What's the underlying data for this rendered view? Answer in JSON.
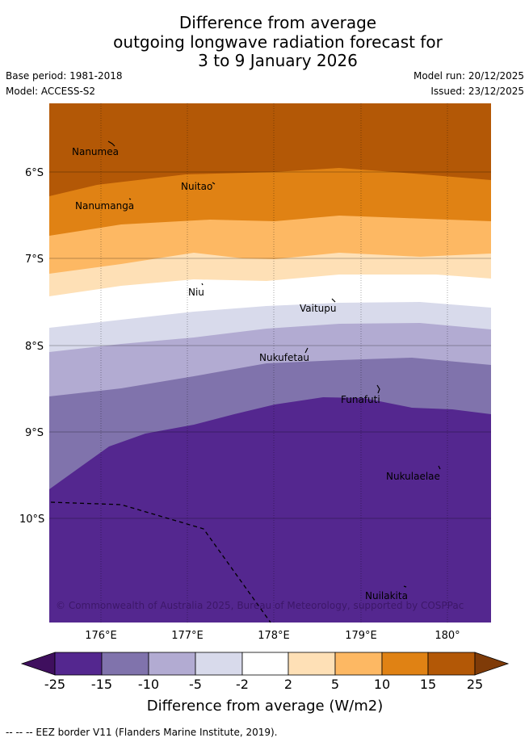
{
  "title": {
    "line1": "Difference from average",
    "line2": "outgoing longwave radiation forecast for",
    "line3": "3 to 9 January 2026"
  },
  "meta": {
    "base_period": "Base period: 1981-2018",
    "model": "Model: ACCESS-S2",
    "model_run": "Model run: 20/12/2025",
    "issued": "Issued: 23/12/2025"
  },
  "axes": {
    "x_ticks": [
      "176°E",
      "177°E",
      "178°E",
      "179°E",
      "180°"
    ],
    "y_ticks": [
      "6°S",
      "7°S",
      "8°S",
      "9°S",
      "10°S"
    ]
  },
  "places": [
    {
      "name": "Nanumea",
      "lon": 176.1,
      "lat": -5.68
    },
    {
      "name": "Nuitao",
      "lon": 177.35,
      "lat": -6.11
    },
    {
      "name": "Nanumanga",
      "lon": 176.32,
      "lat": -6.29
    },
    {
      "name": "Niu",
      "lon": 177.17,
      "lat": -7.3
    },
    {
      "name": "Vaitupu",
      "lon": 178.68,
      "lat": -7.48
    },
    {
      "name": "Nukufetau",
      "lon": 178.38,
      "lat": -8.03
    },
    {
      "name": "Funafuti",
      "lon": 179.2,
      "lat": -8.52
    },
    {
      "name": "Nukulaelae",
      "lon": 179.85,
      "lat": -9.38
    },
    {
      "name": "Nuilakita",
      "lon": 179.52,
      "lat": -10.78
    }
  ],
  "copyright": "© Commonwealth of Australia 2025, Bureau of Meteorology, supported by COSPPac",
  "colorbar": {
    "ticks": [
      "-25",
      "-15",
      "-10",
      "-5",
      "-2",
      "2",
      "5",
      "10",
      "15",
      "25"
    ],
    "colors": [
      "#3f0f5e",
      "#54278f",
      "#8073ac",
      "#b2abd2",
      "#d8daeb",
      "#ffffff",
      "#fee0b6",
      "#fdb863",
      "#e08214",
      "#b35806",
      "#7f3b08"
    ],
    "label": "Difference from average (W/m2)"
  },
  "footer": "--  --  -- EEZ border V11 (Flanders Marine Institute, 2019)."
}
